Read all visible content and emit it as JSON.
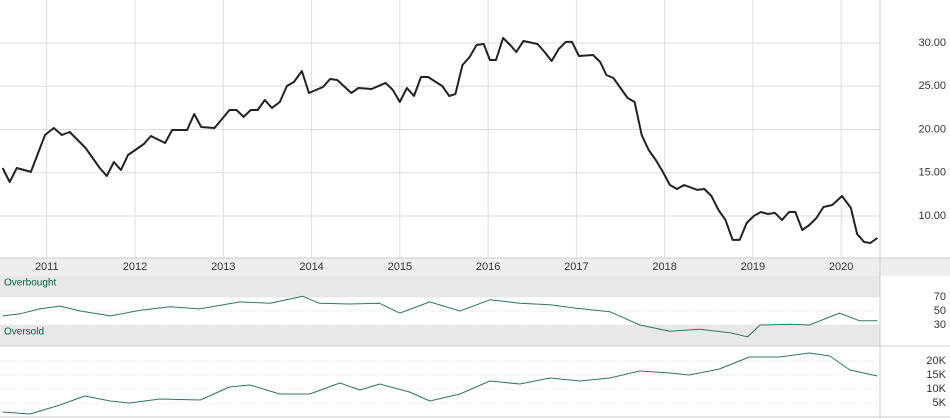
{
  "chart_data": [
    {
      "type": "line",
      "x": [
        2010.5,
        2010.58,
        2010.66,
        2010.82,
        2010.98,
        2011.08,
        2011.17,
        2011.26,
        2011.44,
        2011.6,
        2011.68,
        2011.76,
        2011.84,
        2011.92,
        2012.1,
        2012.18,
        2012.34,
        2012.42,
        2012.59,
        2012.67,
        2012.75,
        2012.9,
        2013.07,
        2013.15,
        2013.23,
        2013.31,
        2013.39,
        2013.47,
        2013.55,
        2013.64,
        2013.72,
        2013.8,
        2013.89,
        2013.97,
        2014.13,
        2014.21,
        2014.29,
        2014.45,
        2014.53,
        2014.68,
        2014.84,
        2014.92,
        2015.0,
        2015.08,
        2015.16,
        2015.24,
        2015.32,
        2015.48,
        2015.56,
        2015.63,
        2015.71,
        2015.79,
        2015.87,
        2015.95,
        2016.02,
        2016.09,
        2016.17,
        2016.25,
        2016.32,
        2016.4,
        2016.56,
        2016.64,
        2016.72,
        2016.8,
        2016.88,
        2016.95,
        2017.03,
        2017.19,
        2017.27,
        2017.34,
        2017.42,
        2017.58,
        2017.66,
        2017.74,
        2017.82,
        2017.9,
        2017.98,
        2018.06,
        2018.14,
        2018.22,
        2018.37,
        2018.45,
        2018.53,
        2018.61,
        2018.69,
        2018.77,
        2018.85,
        2018.93,
        2019.01,
        2019.09,
        2019.17,
        2019.25,
        2019.33,
        2019.41,
        2019.48,
        2019.56,
        2019.64,
        2019.72,
        2019.8,
        2019.9,
        2020.01,
        2020.11,
        2020.18,
        2020.26,
        2020.33,
        2020.41
      ],
      "series": [
        {
          "color": "#222222",
          "values": [
            15.55,
            13.93,
            15.55,
            15.09,
            19.36,
            20.17,
            19.36,
            19.71,
            17.86,
            15.55,
            14.63,
            16.24,
            15.32,
            17.05,
            18.32,
            19.25,
            18.44,
            19.94,
            19.94,
            21.79,
            20.29,
            20.17,
            22.25,
            22.25,
            21.45,
            22.25,
            22.25,
            23.41,
            22.49,
            23.18,
            25.03,
            25.49,
            26.76,
            24.22,
            24.91,
            25.84,
            25.72,
            24.22,
            24.8,
            24.68,
            25.38,
            24.57,
            23.18,
            24.8,
            23.87,
            26.07,
            26.07,
            25.03,
            23.87,
            24.1,
            27.46,
            28.38,
            29.77,
            29.88,
            28.03,
            28.03,
            30.58,
            29.77,
            28.96,
            30.23,
            29.88,
            28.96,
            27.92,
            29.31,
            30.12,
            30.12,
            28.5,
            28.61,
            27.8,
            26.3,
            25.95,
            23.64,
            23.18,
            19.36,
            17.63,
            16.47,
            15.09,
            13.58,
            13.12,
            13.58,
            13.01,
            13.12,
            12.31,
            10.69,
            9.54,
            7.23,
            7.23,
            9.19,
            10.0,
            10.46,
            10.23,
            10.35,
            9.54,
            10.46,
            10.46,
            8.38,
            8.96,
            9.77,
            11.04,
            11.27,
            12.31,
            10.92,
            7.92,
            6.99,
            6.88,
            7.46
          ]
        }
      ],
      "xlim": [
        2010.47,
        2020.44
      ],
      "xticks": [
        2011,
        2012,
        2013,
        2014,
        2015,
        2016,
        2017,
        2018,
        2019,
        2020
      ],
      "ylim": [
        5.14,
        34.97
      ],
      "yticks": [
        {
          "value": 10,
          "label": "10.00"
        },
        {
          "value": 15,
          "label": "15.00"
        },
        {
          "value": 20,
          "label": "20.00"
        },
        {
          "value": 25,
          "label": "25.00"
        },
        {
          "value": 30,
          "label": "30.00"
        }
      ],
      "grid": true
    },
    {
      "type": "line",
      "x": [
        2010.5,
        2010.7,
        2010.92,
        2011.15,
        2011.38,
        2011.72,
        2012.06,
        2012.4,
        2012.73,
        2013.19,
        2013.53,
        2013.9,
        2014.09,
        2014.43,
        2014.77,
        2015.0,
        2015.34,
        2015.68,
        2016.02,
        2016.36,
        2016.7,
        2017.0,
        2017.38,
        2017.72,
        2018.06,
        2018.4,
        2018.74,
        2018.94,
        2019.08,
        2019.42,
        2019.64,
        2019.98,
        2020.21,
        2020.41
      ],
      "series": [
        {
          "color": "#2a7a5e",
          "values": [
            43,
            46,
            53,
            57,
            50,
            43,
            51,
            56,
            53,
            63,
            61,
            71,
            61,
            60,
            61,
            47,
            63,
            50,
            66,
            61,
            59,
            54,
            49,
            30,
            21,
            24,
            19,
            13,
            30,
            31,
            30,
            47,
            36,
            36
          ]
        }
      ],
      "xlim": [
        2010.47,
        2020.44
      ],
      "ylim": [
        0,
        100
      ],
      "yticks": [
        30,
        50,
        70
      ],
      "bands": [
        {
          "from": 70,
          "to": 100,
          "label": "Overbought"
        },
        {
          "from": 0,
          "to": 30,
          "label": "Oversold"
        }
      ]
    },
    {
      "type": "line",
      "x": [
        2010.5,
        2010.81,
        2011.15,
        2011.43,
        2011.72,
        2011.94,
        2012.28,
        2012.74,
        2013.07,
        2013.3,
        2013.64,
        2013.98,
        2014.32,
        2014.55,
        2014.77,
        2015.11,
        2015.34,
        2015.68,
        2016.02,
        2016.36,
        2016.7,
        2017.04,
        2017.38,
        2017.72,
        2018.06,
        2018.28,
        2018.62,
        2018.96,
        2019.3,
        2019.64,
        2019.87,
        2020.1,
        2020.41
      ],
      "series": [
        {
          "color": "#2a7a5e",
          "values": [
            1786,
            1071,
            4286,
            7500,
            5714,
            5000,
            6429,
            6071,
            10714,
            11429,
            8214,
            8214,
            12143,
            9643,
            11786,
            8929,
            5714,
            8214,
            12857,
            11786,
            13929,
            12857,
            13929,
            16429,
            15714,
            15000,
            17143,
            21429,
            21429,
            22857,
            21786,
            16786,
            14643
          ]
        }
      ],
      "xlim": [
        2010.47,
        2020.44
      ],
      "ylim": [
        0,
        25360
      ],
      "yticks": [
        {
          "value": 5000,
          "label": "5K"
        },
        {
          "value": 10000,
          "label": "10K"
        },
        {
          "value": 15000,
          "label": "15K"
        },
        {
          "value": 20000,
          "label": "20K"
        }
      ]
    }
  ]
}
